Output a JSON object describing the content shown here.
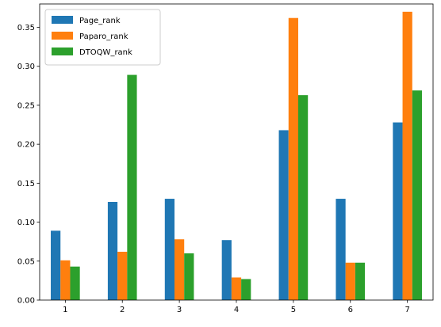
{
  "chart_data": {
    "type": "bar",
    "categories": [
      "1",
      "2",
      "3",
      "4",
      "5",
      "6",
      "7"
    ],
    "series": [
      {
        "name": "Page_rank",
        "color": "#1f77b4",
        "values": [
          0.089,
          0.126,
          0.13,
          0.077,
          0.218,
          0.13,
          0.228
        ]
      },
      {
        "name": "Paparo_rank",
        "color": "#ff7f0e",
        "values": [
          0.051,
          0.062,
          0.078,
          0.029,
          0.362,
          0.048,
          0.37
        ]
      },
      {
        "name": "DTOQW_rank",
        "color": "#2ca02c",
        "values": [
          0.043,
          0.289,
          0.06,
          0.027,
          0.263,
          0.048,
          0.269
        ]
      }
    ],
    "title": "",
    "xlabel": "",
    "ylabel": "",
    "ylim": [
      0,
      0.38
    ],
    "yticks": [
      "0.00",
      "0.05",
      "0.10",
      "0.15",
      "0.20",
      "0.25",
      "0.30",
      "0.35"
    ],
    "legend_position": "top-left",
    "grid": false
  }
}
